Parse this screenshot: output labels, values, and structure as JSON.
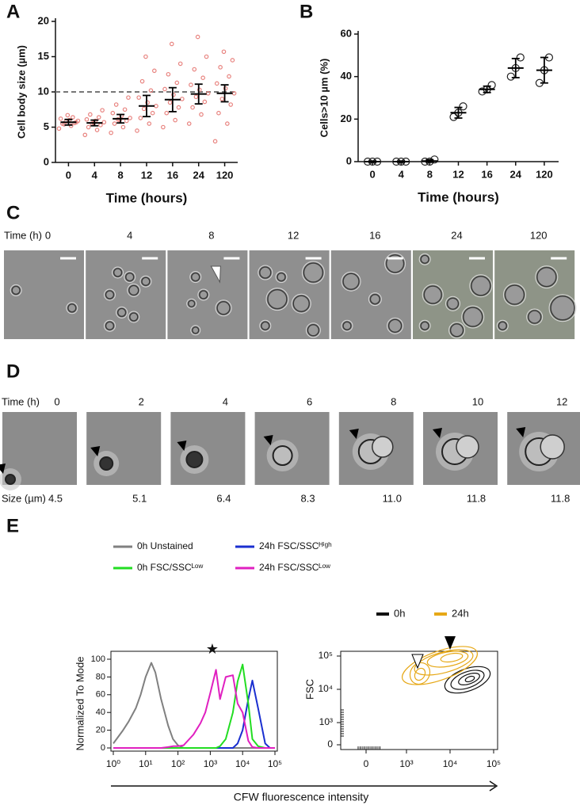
{
  "panel_labels": [
    "A",
    "B",
    "C",
    "D",
    "E"
  ],
  "panel_c": {
    "time_label": "Time (h)",
    "times": [
      0,
      4,
      8,
      12,
      16,
      24,
      120
    ]
  },
  "panel_d": {
    "time_label": "Time (h)",
    "times": [
      0,
      2,
      4,
      6,
      8,
      10,
      12
    ],
    "size_label": "Size (µm)",
    "sizes": [
      "4.5",
      "5.1",
      "6.4",
      "8.3",
      "11.0",
      "11.8",
      "11.8"
    ]
  },
  "shared_xlabel": "CFW fluorescence intensity",
  "chart_data": [
    {
      "type": "dotplot",
      "xlabel": "Time (hours)",
      "ylabel": "Cell body size (µm)",
      "categories": [
        "0",
        "4",
        "8",
        "12",
        "16",
        "24",
        "120"
      ],
      "points": [
        [
          4.8,
          5.2,
          5.5,
          5.6,
          5.8,
          5.9,
          6.0,
          6.2,
          6.4,
          5.4,
          5.7,
          6.7
        ],
        [
          3.9,
          4.6,
          5.0,
          5.3,
          5.5,
          5.7,
          5.9,
          6.1,
          6.4,
          6.8,
          7.4,
          5.6
        ],
        [
          4.2,
          5.0,
          5.5,
          5.9,
          6.1,
          6.3,
          6.6,
          7.0,
          7.5,
          8.2,
          9.2,
          6.0
        ],
        [
          4.5,
          5.5,
          6.3,
          7.0,
          7.6,
          8.0,
          8.5,
          9.2,
          10.2,
          11.5,
          13.0,
          15.0
        ],
        [
          5.0,
          6.0,
          7.0,
          7.8,
          8.5,
          9.0,
          9.6,
          10.4,
          11.3,
          12.5,
          14.0,
          16.8
        ],
        [
          5.5,
          6.8,
          7.8,
          8.6,
          9.3,
          9.8,
          10.3,
          11.0,
          12.0,
          13.2,
          15.0,
          17.8
        ],
        [
          3.0,
          5.5,
          7.0,
          8.2,
          9.0,
          9.8,
          10.5,
          11.2,
          12.2,
          13.5,
          14.5,
          15.7
        ]
      ],
      "means": [
        5.7,
        5.6,
        6.2,
        8.0,
        8.9,
        9.7,
        9.8
      ],
      "sd": [
        0.4,
        0.4,
        0.6,
        1.5,
        1.7,
        1.4,
        1.2
      ],
      "point_color": "#e8837f",
      "hline": 10,
      "ylim": [
        0,
        20
      ],
      "yticks": [
        0,
        5,
        10,
        15,
        20
      ]
    },
    {
      "type": "dotplot",
      "xlabel": "Time (hours)",
      "ylabel": "Cells>10 µm (%)",
      "categories": [
        "0",
        "4",
        "8",
        "12",
        "16",
        "24",
        "120"
      ],
      "points": [
        [
          0,
          0,
          0
        ],
        [
          0,
          0,
          0
        ],
        [
          0,
          0,
          1
        ],
        [
          21,
          23,
          26
        ],
        [
          33,
          34,
          36
        ],
        [
          40,
          44,
          49
        ],
        [
          37,
          43,
          49
        ]
      ],
      "means": [
        0,
        0,
        0.3,
        23,
        34,
        44,
        43
      ],
      "sd": [
        0.3,
        0.3,
        0.6,
        2.5,
        1.5,
        4.5,
        6
      ],
      "point_color": "#222222",
      "ylim": [
        0,
        60
      ],
      "yticks": [
        0,
        20,
        40,
        60
      ]
    },
    {
      "type": "line",
      "ylabel": "Normalized To Mode",
      "xscale": "log",
      "annotation": "★",
      "x": [
        1,
        2,
        3,
        5,
        7,
        10,
        15,
        20,
        30,
        50,
        70,
        100,
        150,
        200,
        300,
        500,
        700,
        1000,
        1500,
        2000,
        3000,
        5000,
        7000,
        10000,
        15000,
        20000,
        30000,
        50000,
        70000,
        100000
      ],
      "series": [
        {
          "name": "0h Unstained",
          "color": "#808080",
          "values": [
            5,
            20,
            30,
            45,
            60,
            80,
            96,
            85,
            55,
            25,
            10,
            3,
            0,
            0,
            0,
            0,
            0,
            0,
            0,
            0,
            0,
            0,
            0,
            0,
            0,
            0,
            0,
            0,
            0,
            0
          ]
        },
        {
          "name": "24h FSC/SSCᴴⁱᵍʰ",
          "color": "#1a2fd0",
          "values": [
            0,
            0,
            0,
            0,
            0,
            0,
            0,
            0,
            0,
            0,
            0,
            0,
            0,
            0,
            0,
            0,
            0,
            0,
            0,
            0,
            0,
            0,
            5,
            20,
            55,
            76,
            45,
            5,
            0,
            0
          ]
        },
        {
          "name": "0h FSC/SSCᴸᵒʷ",
          "color": "#22dd22",
          "values": [
            0,
            0,
            0,
            0,
            0,
            0,
            0,
            0,
            0,
            0,
            0,
            0,
            0,
            0,
            0,
            0,
            0,
            0,
            0,
            2,
            10,
            40,
            75,
            94,
            50,
            10,
            2,
            0,
            0,
            0
          ]
        },
        {
          "name": "24h FSC/SSCᴸᵒʷ",
          "color": "#e020c0",
          "values": [
            0,
            0,
            0,
            0,
            0,
            0,
            0,
            0,
            0,
            1,
            2,
            2,
            3,
            8,
            15,
            28,
            40,
            62,
            88,
            55,
            80,
            82,
            50,
            40,
            8,
            1,
            0,
            0,
            0,
            0
          ]
        }
      ],
      "xlim": [
        1,
        100000
      ],
      "xticks": [
        {
          "value": 1,
          "label": "10⁰"
        },
        {
          "value": 10,
          "label": "10¹"
        },
        {
          "value": 100,
          "label": "10²"
        },
        {
          "value": 1000,
          "label": "10³"
        },
        {
          "value": 10000,
          "label": "10⁴"
        },
        {
          "value": 100000,
          "label": "10⁵"
        }
      ],
      "ylim": [
        0,
        100
      ],
      "yticks": [
        0,
        20,
        40,
        60,
        80,
        100
      ]
    },
    {
      "type": "contour",
      "ylabel": "FSC",
      "series": [
        {
          "name": "0h",
          "color": "#111111"
        },
        {
          "name": "24h",
          "color": "#e6a817"
        }
      ],
      "xticks": [
        0,
        {
          "value": 1000,
          "label": "10³"
        },
        {
          "value": 10000,
          "label": "10⁴"
        },
        {
          "value": 100000,
          "label": "10⁵"
        }
      ],
      "yticks": [
        0,
        {
          "value": 1000,
          "label": "10³"
        },
        {
          "value": 10000,
          "label": "10⁴"
        },
        {
          "value": 100000,
          "label": "10⁵"
        }
      ]
    }
  ]
}
